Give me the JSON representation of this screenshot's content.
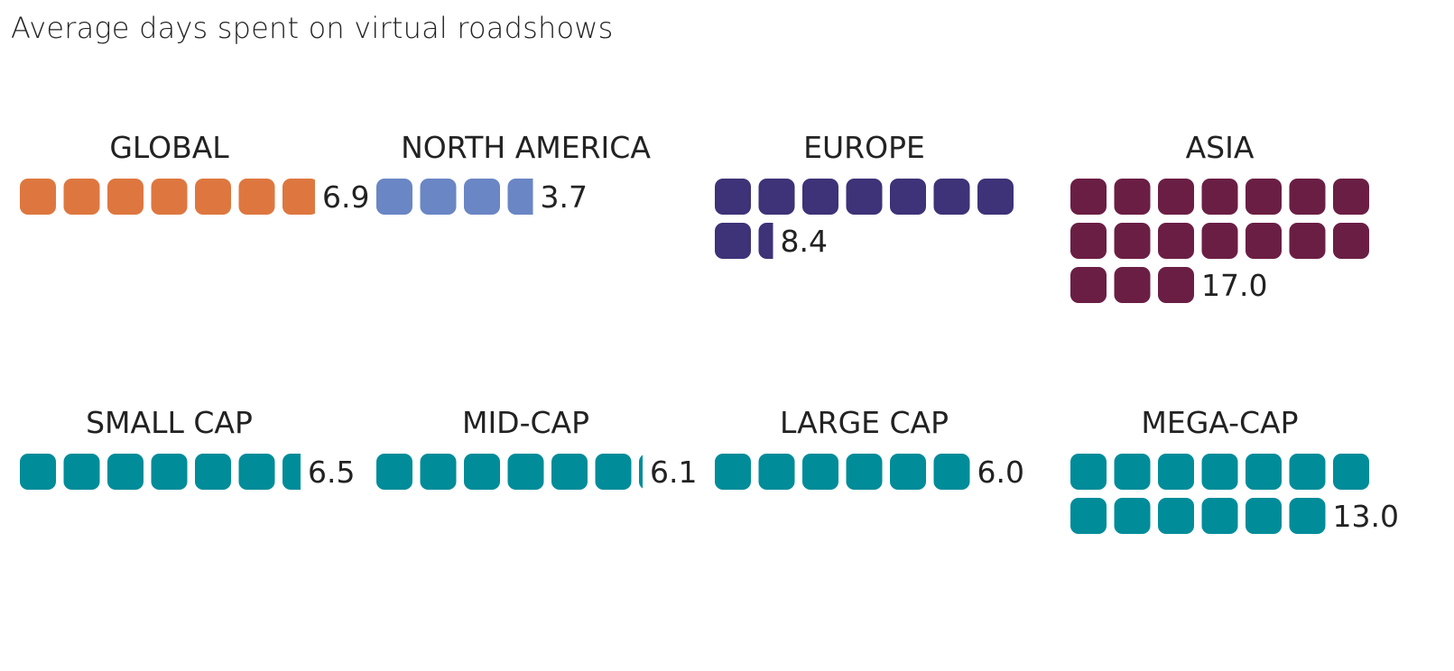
{
  "chart_data": {
    "type": "waffle",
    "title": "Average days spent on virtual roadshows",
    "unit_per_square": 1,
    "panels": [
      {
        "name": "GLOBAL",
        "value": 6.9,
        "label": "6.9",
        "color": "#DE773F"
      },
      {
        "name": "NORTH AMERICA",
        "value": 3.7,
        "label": "3.7",
        "color": "#6A86C4"
      },
      {
        "name": "EUROPE",
        "value": 8.4,
        "label": "8.4",
        "color": "#3E3278"
      },
      {
        "name": "ASIA",
        "value": 17.0,
        "label": "17.0",
        "color": "#6B1E44"
      },
      {
        "name": "SMALL CAP",
        "value": 6.5,
        "label": "6.5",
        "color": "#008C99"
      },
      {
        "name": "MID-CAP",
        "value": 6.1,
        "label": "6.1",
        "color": "#008C99"
      },
      {
        "name": "LARGE CAP",
        "value": 6.0,
        "label": "6.0",
        "color": "#008C99"
      },
      {
        "name": "MEGA-CAP",
        "value": 13.0,
        "label": "13.0",
        "color": "#008C99"
      }
    ]
  }
}
